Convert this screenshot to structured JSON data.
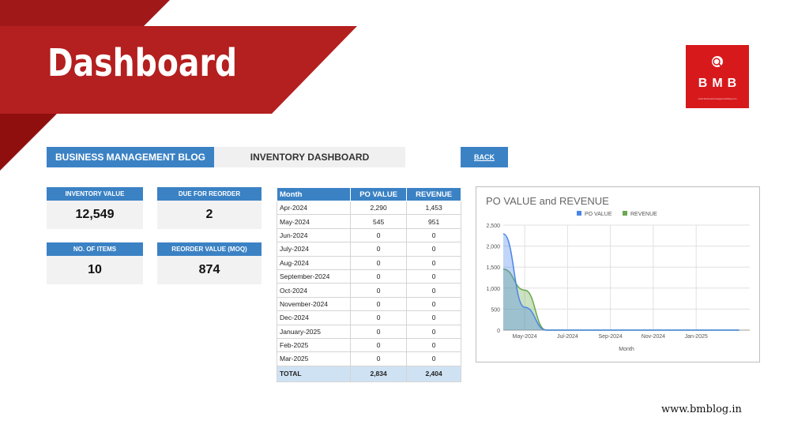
{
  "header": {
    "title": "Dashboard",
    "logo_text": "BMB",
    "logo_subtext": "www.businessmanagementblog.com"
  },
  "bar": {
    "blog": "BUSINESS MANAGEMENT BLOG",
    "dashboard": "INVENTORY DASHBOARD",
    "back": "BACK"
  },
  "kpis": [
    {
      "label": "INVENTORY VALUE",
      "value": "12,549"
    },
    {
      "label": "DUE FOR REORDER",
      "value": "2"
    },
    {
      "label": "NO. OF ITEMS",
      "value": "10"
    },
    {
      "label": "REORDER VALUE (MOQ)",
      "value": "874"
    }
  ],
  "table": {
    "headers": [
      "Month",
      "PO VALUE",
      "REVENUE"
    ],
    "rows": [
      [
        "Apr-2024",
        "2,290",
        "1,453"
      ],
      [
        "May-2024",
        "545",
        "951"
      ],
      [
        "Jun-2024",
        "0",
        "0"
      ],
      [
        "July-2024",
        "0",
        "0"
      ],
      [
        "Aug-2024",
        "0",
        "0"
      ],
      [
        "September-2024",
        "0",
        "0"
      ],
      [
        "Oct-2024",
        "0",
        "0"
      ],
      [
        "November-2024",
        "0",
        "0"
      ],
      [
        "Dec-2024",
        "0",
        "0"
      ],
      [
        "January-2025",
        "0",
        "0"
      ],
      [
        "Feb-2025",
        "0",
        "0"
      ],
      [
        "Mar-2025",
        "0",
        "0"
      ]
    ],
    "total": [
      "TOTAL",
      "2,834",
      "2,404"
    ]
  },
  "chart_data": {
    "type": "area",
    "title": "PO VALUE and REVENUE",
    "xlabel": "Month",
    "ylabel": "",
    "ylim": [
      0,
      2500
    ],
    "yticks": [
      "0",
      "500",
      "1,000",
      "1,500",
      "2,000",
      "2,500"
    ],
    "xticks": [
      "May-2024",
      "Jul-2024",
      "Sep-2024",
      "Nov-2024",
      "Jan-2025"
    ],
    "categories": [
      "Apr-2024",
      "May-2024",
      "Jun-2024",
      "Jul-2024",
      "Aug-2024",
      "Sep-2024",
      "Oct-2024",
      "Nov-2024",
      "Dec-2024",
      "Jan-2025",
      "Feb-2025",
      "Mar-2025"
    ],
    "legend_position": "top",
    "grid": true,
    "series": [
      {
        "name": "PO VALUE",
        "color": "#4a86e8",
        "values": [
          2290,
          545,
          0,
          0,
          0,
          0,
          0,
          0,
          0,
          0,
          0,
          0
        ]
      },
      {
        "name": "REVENUE",
        "color": "#6aa84f",
        "values": [
          1453,
          951,
          0,
          0,
          0,
          0,
          0,
          0,
          0,
          0,
          0,
          0
        ]
      }
    ]
  },
  "footer": {
    "url": "www.bmblog.in"
  },
  "colors": {
    "banner_red": "#b41f1f",
    "banner_dark": "#8f0f0f",
    "accent_blue": "#3b82c4",
    "total_row": "#cfe2f3"
  }
}
